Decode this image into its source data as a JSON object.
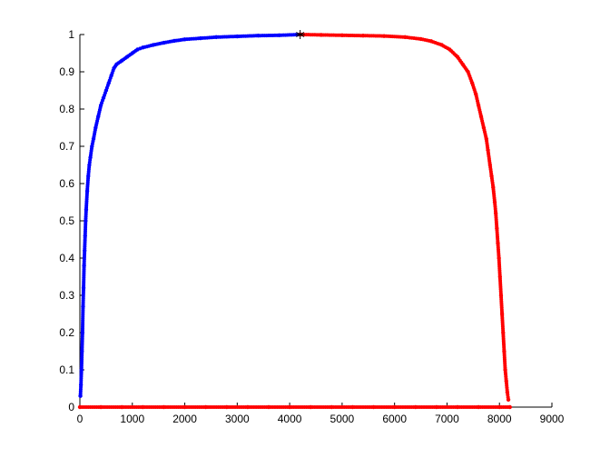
{
  "chart_data": {
    "type": "scatter",
    "title": "",
    "xlabel": "",
    "ylabel": "",
    "xlim": [
      0,
      9000
    ],
    "ylim": [
      0,
      1
    ],
    "grid": false,
    "legend": "none",
    "x_ticks": [
      "0",
      "1000",
      "2000",
      "3000",
      "4000",
      "5000",
      "6000",
      "7000",
      "8000",
      "9000"
    ],
    "y_ticks": [
      "0",
      "0.1",
      "0.2",
      "0.3",
      "0.4",
      "0.5",
      "0.6",
      "0.7",
      "0.8",
      "0.9",
      "1"
    ],
    "colors": {
      "series_1": "#0000ff",
      "series_2": "#ff0000",
      "peak_marker": "#000000",
      "axes": "#000000"
    },
    "series": [
      {
        "color": "#0000ff",
        "marker": "dot",
        "points": [
          [
            10,
            0.03
          ],
          [
            20,
            0.06
          ],
          [
            30,
            0.1
          ],
          [
            40,
            0.15
          ],
          [
            50,
            0.2
          ],
          [
            60,
            0.27
          ],
          [
            70,
            0.32
          ],
          [
            80,
            0.38
          ],
          [
            90,
            0.42
          ],
          [
            100,
            0.46
          ],
          [
            110,
            0.5
          ],
          [
            120,
            0.53
          ],
          [
            140,
            0.58
          ],
          [
            160,
            0.62
          ],
          [
            180,
            0.65
          ],
          [
            200,
            0.67
          ],
          [
            230,
            0.7
          ],
          [
            260,
            0.72
          ],
          [
            300,
            0.75
          ],
          [
            350,
            0.78
          ],
          [
            400,
            0.81
          ],
          [
            450,
            0.83
          ],
          [
            500,
            0.85
          ],
          [
            550,
            0.87
          ],
          [
            600,
            0.89
          ],
          [
            650,
            0.91
          ],
          [
            700,
            0.92
          ],
          [
            800,
            0.93
          ],
          [
            900,
            0.94
          ],
          [
            1000,
            0.95
          ],
          [
            1100,
            0.96
          ],
          [
            1200,
            0.965
          ],
          [
            1400,
            0.972
          ],
          [
            1600,
            0.978
          ],
          [
            1800,
            0.983
          ],
          [
            2000,
            0.987
          ],
          [
            2300,
            0.99
          ],
          [
            2600,
            0.993
          ],
          [
            3000,
            0.995
          ],
          [
            3400,
            0.997
          ],
          [
            3800,
            0.998
          ],
          [
            4200,
            1.0
          ]
        ]
      },
      {
        "color": "#ff0000",
        "marker": "dot",
        "points": [
          [
            4200,
            1.0
          ],
          [
            4600,
            0.999
          ],
          [
            5000,
            0.998
          ],
          [
            5400,
            0.997
          ],
          [
            5800,
            0.996
          ],
          [
            6200,
            0.993
          ],
          [
            6500,
            0.988
          ],
          [
            6700,
            0.982
          ],
          [
            6900,
            0.972
          ],
          [
            7050,
            0.96
          ],
          [
            7200,
            0.94
          ],
          [
            7300,
            0.92
          ],
          [
            7400,
            0.9
          ],
          [
            7480,
            0.87
          ],
          [
            7550,
            0.84
          ],
          [
            7600,
            0.81
          ],
          [
            7650,
            0.78
          ],
          [
            7700,
            0.75
          ],
          [
            7750,
            0.72
          ],
          [
            7780,
            0.69
          ],
          [
            7820,
            0.65
          ],
          [
            7850,
            0.62
          ],
          [
            7880,
            0.59
          ],
          [
            7910,
            0.55
          ],
          [
            7930,
            0.52
          ],
          [
            7950,
            0.48
          ],
          [
            7970,
            0.44
          ],
          [
            7990,
            0.4
          ],
          [
            8010,
            0.35
          ],
          [
            8030,
            0.3
          ],
          [
            8050,
            0.25
          ],
          [
            8070,
            0.2
          ],
          [
            8090,
            0.15
          ],
          [
            8110,
            0.1
          ],
          [
            8130,
            0.07
          ],
          [
            8150,
            0.04
          ],
          [
            8170,
            0.02
          ]
        ]
      },
      {
        "color": "#ff0000",
        "marker": "dot",
        "note_visible": "",
        "points": [
          [
            0,
            0
          ],
          [
            400,
            0
          ],
          [
            800,
            0
          ],
          [
            1200,
            0
          ],
          [
            1600,
            0
          ],
          [
            2000,
            0
          ],
          [
            2400,
            0
          ],
          [
            2800,
            0
          ],
          [
            3200,
            0
          ],
          [
            3600,
            0
          ],
          [
            4000,
            0
          ],
          [
            4400,
            0
          ],
          [
            4800,
            0
          ],
          [
            5200,
            0
          ],
          [
            5600,
            0
          ],
          [
            6000,
            0
          ],
          [
            6400,
            0
          ],
          [
            6800,
            0
          ],
          [
            7200,
            0
          ],
          [
            7600,
            0
          ],
          [
            8000,
            0
          ],
          [
            8200,
            0
          ]
        ]
      }
    ],
    "peak_marker": {
      "x": 4200,
      "y": 1.0,
      "symbol": "asterisk",
      "color": "#000000"
    }
  }
}
